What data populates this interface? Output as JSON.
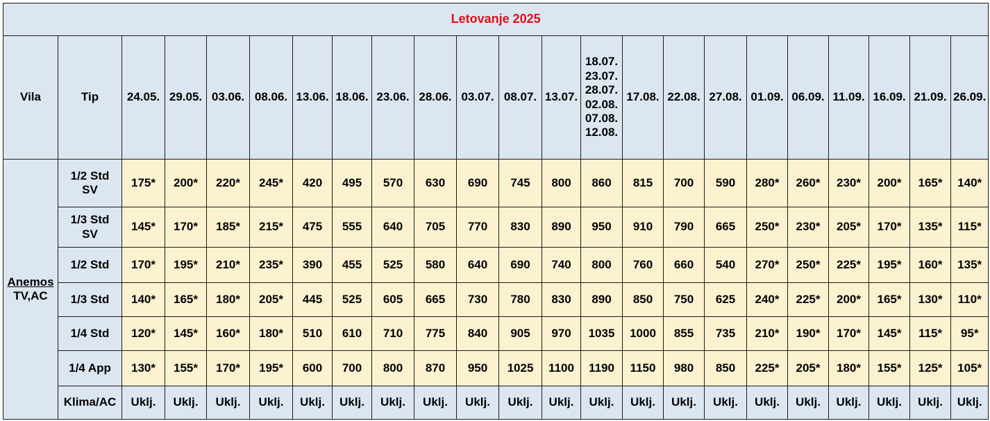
{
  "title": "Letovanje 2025",
  "headers": {
    "villa": "Vila",
    "type": "Tip",
    "dates": [
      [
        "24.05."
      ],
      [
        "29.05."
      ],
      [
        "03.06."
      ],
      [
        "08.06."
      ],
      [
        "13.06."
      ],
      [
        "18.06."
      ],
      [
        "23.06."
      ],
      [
        "28.06."
      ],
      [
        "03.07."
      ],
      [
        "08.07."
      ],
      [
        "13.07."
      ],
      [
        "18.07.",
        "23.07.",
        "28.07.",
        "02.08.",
        "07.08.",
        "12.08."
      ],
      [
        "17.08."
      ],
      [
        "22.08."
      ],
      [
        "27.08."
      ],
      [
        "01.09."
      ],
      [
        "06.09."
      ],
      [
        "11.09."
      ],
      [
        "16.09."
      ],
      [
        "21.09."
      ],
      [
        "26.09."
      ]
    ]
  },
  "villa": {
    "name": "Anemos",
    "features": "TV,AC"
  },
  "rows": [
    {
      "type": [
        "1/2 Std",
        "SV"
      ],
      "values": [
        "175*",
        "200*",
        "220*",
        "245*",
        "420",
        "495",
        "570",
        "630",
        "690",
        "745",
        "800",
        "860",
        "815",
        "700",
        "590",
        "280*",
        "260*",
        "230*",
        "200*",
        "165*",
        "140*"
      ]
    },
    {
      "type": [
        "1/3 Std",
        "SV"
      ],
      "values": [
        "145*",
        "170*",
        "185*",
        "215*",
        "475",
        "555",
        "640",
        "705",
        "770",
        "830",
        "890",
        "950",
        "910",
        "790",
        "665",
        "250*",
        "230*",
        "205*",
        "170*",
        "135*",
        "115*"
      ]
    },
    {
      "type": [
        "1/2 Std"
      ],
      "values": [
        "170*",
        "195*",
        "210*",
        "235*",
        "390",
        "455",
        "525",
        "580",
        "640",
        "690",
        "740",
        "800",
        "760",
        "660",
        "540",
        "270*",
        "250*",
        "225*",
        "195*",
        "160*",
        "135*"
      ]
    },
    {
      "type": [
        "1/3 Std"
      ],
      "values": [
        "140*",
        "165*",
        "180*",
        "205*",
        "445",
        "525",
        "605",
        "665",
        "730",
        "780",
        "830",
        "890",
        "850",
        "750",
        "625",
        "240*",
        "225*",
        "200*",
        "165*",
        "130*",
        "110*"
      ]
    },
    {
      "type": [
        "1/4 Std"
      ],
      "values": [
        "120*",
        "145*",
        "160*",
        "180*",
        "510",
        "610",
        "710",
        "775",
        "840",
        "905",
        "970",
        "1035",
        "1000",
        "855",
        "735",
        "210*",
        "190*",
        "170*",
        "145*",
        "115*",
        "95*"
      ]
    },
    {
      "type": [
        "1/4 App"
      ],
      "values": [
        "130*",
        "155*",
        "170*",
        "195*",
        "600",
        "700",
        "800",
        "870",
        "950",
        "1025",
        "1100",
        "1190",
        "1150",
        "980",
        "850",
        "225*",
        "205*",
        "180*",
        "155*",
        "125*",
        "105*"
      ]
    },
    {
      "type": [
        "Klima/AC"
      ],
      "values": [
        "Uklj.",
        "Uklj.",
        "Uklj.",
        "Uklj.",
        "Uklj.",
        "Uklj.",
        "Uklj.",
        "Uklj.",
        "Uklj.",
        "Uklj.",
        "Uklj.",
        "Uklj.",
        "Uklj.",
        "Uklj.",
        "Uklj.",
        "Uklj.",
        "Uklj.",
        "Uklj.",
        "Uklj.",
        "Uklj.",
        "Uklj."
      ]
    }
  ],
  "colors": {
    "header_bg": "#dce6f1",
    "value_bg": "#fdf2d0",
    "title_text": "#e0101a"
  }
}
